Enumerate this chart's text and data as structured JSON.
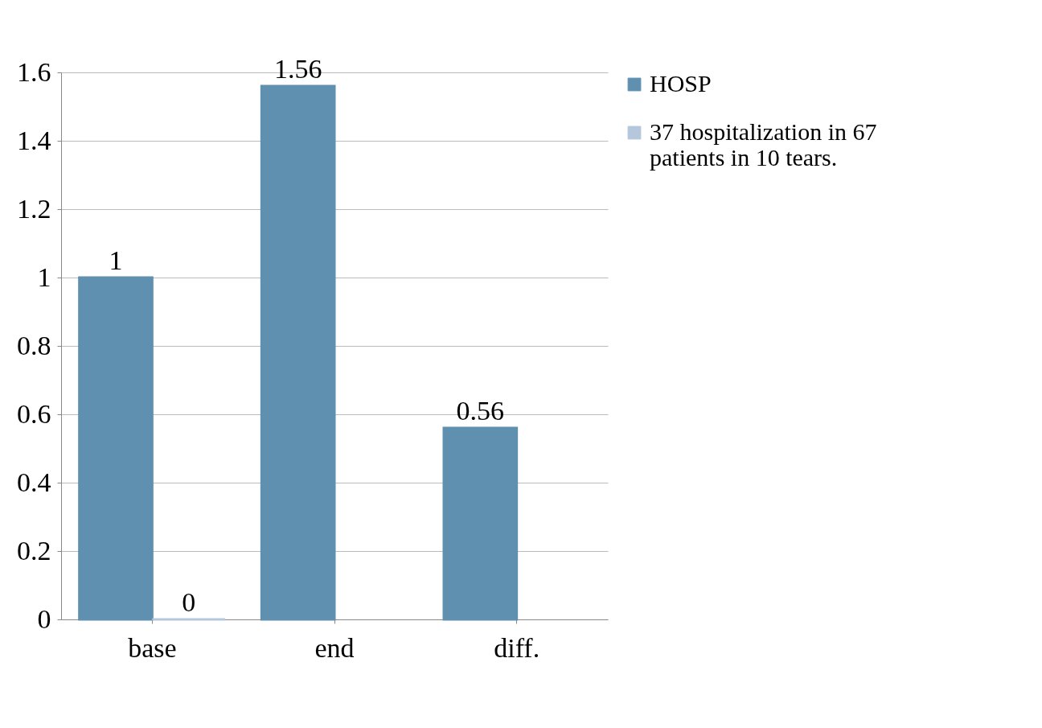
{
  "chart_data": {
    "type": "bar",
    "categories": [
      "base",
      "end",
      "diff."
    ],
    "series": [
      {
        "name": "HOSP",
        "color": "#6090b0",
        "values": [
          1,
          1.56,
          0.56
        ]
      },
      {
        "name": "37 hospitalization in 67 patients in 10 tears.",
        "color": "#b4c7dc",
        "values": [
          0,
          null,
          null
        ]
      }
    ],
    "ylim": [
      0,
      1.6
    ],
    "yticks": [
      0,
      0.2,
      0.4,
      0.6,
      0.8,
      1,
      1.2,
      1.4,
      1.6
    ],
    "grid": "y",
    "legend": "top right",
    "data_labels": true
  }
}
